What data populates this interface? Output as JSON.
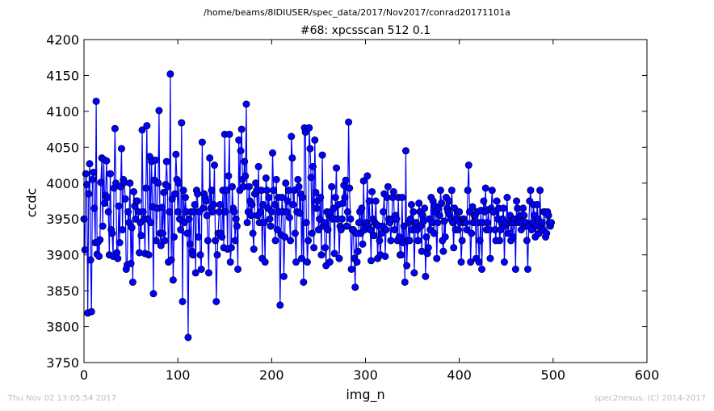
{
  "chart_data": {
    "type": "line",
    "suptitle": "/home/beams/8IDIUSER/spec_data/2017/Nov2017/conrad20171101a",
    "title": "#68: xpcsscan 512 0.1",
    "xlabel": "img_n",
    "ylabel": "ccdc",
    "xlim": [
      0,
      600
    ],
    "ylim": [
      3750,
      4200
    ],
    "xticks": [
      0,
      100,
      200,
      300,
      400,
      500,
      600
    ],
    "yticks": [
      3750,
      3800,
      3850,
      3900,
      3950,
      4000,
      4050,
      4100,
      4150,
      4200
    ],
    "grid": false,
    "series": [
      {
        "color": "#0000ff",
        "marker": "circle",
        "x_start": 0,
        "x_step": 1,
        "values": [
          3950,
          3907,
          4013,
          3998,
          3819,
          3985,
          4027,
          3893,
          3821,
          4005,
          4015,
          3965,
          3917,
          4114,
          3901,
          3918,
          3898,
          3921,
          4001,
          4035,
          3940,
          4033,
          3972,
          3983,
          4031,
          3980,
          3960,
          3900,
          4013,
          3935,
          3930,
          3898,
          3993,
          4076,
          4000,
          3903,
          3895,
          3968,
          3917,
          3995,
          4048,
          3935,
          4005,
          4001,
          3978,
          3880,
          3886,
          3960,
          3945,
          4000,
          3888,
          3938,
          3862,
          3988,
          3968,
          3950,
          3975,
          3975,
          3960,
          3903,
          3945,
          3927,
          4074,
          3960,
          3950,
          3902,
          3993,
          4080,
          3950,
          3900,
          4037,
          3945,
          4030,
          3967,
          3846,
          4004,
          4032,
          3920,
          3965,
          4000,
          4101,
          3930,
          3913,
          3966,
          3930,
          3987,
          3920,
          3998,
          4030,
          3995,
          3890,
          3960,
          4152,
          3893,
          3978,
          3865,
          3925,
          3985,
          4040,
          4005,
          3960,
          4000,
          3950,
          3935,
          4084,
          3835,
          3990,
          3945,
          3980,
          3960,
          3930,
          3785,
          3950,
          3915,
          3960,
          3905,
          3900,
          3960,
          3970,
          3875,
          3990,
          3985,
          3925,
          3960,
          3900,
          3880,
          4057,
          3965,
          3985,
          3980,
          3975,
          3955,
          3920,
          3875,
          4035,
          3965,
          3990,
          3960,
          3970,
          4025,
          3920,
          3835,
          3900,
          3930,
          3960,
          3970,
          3930,
          3925,
          3990,
          3910,
          4068,
          3960,
          3990,
          3908,
          4010,
          4068,
          3890,
          3910,
          3995,
          3965,
          3960,
          3920,
          3950,
          3940,
          3880,
          4060,
          3990,
          4045,
          4075,
          4005,
          3995,
          4030,
          4010,
          4110,
          3945,
          3960,
          3995,
          3975,
          3955,
          3970,
          3930,
          3908,
          3985,
          4000,
          3990,
          3955,
          4023,
          3945,
          3960,
          3990,
          3895,
          3970,
          3945,
          3890,
          4007,
          3990,
          3965,
          3980,
          3950,
          3940,
          3960,
          4042,
          3990,
          3970,
          3920,
          4005,
          3935,
          3980,
          3960,
          3830,
          3928,
          3980,
          3960,
          3870,
          3925,
          4000,
          3960,
          3975,
          3990,
          3952,
          3920,
          4065,
          4035,
          3970,
          3990,
          3930,
          3890,
          3960,
          4005,
          3995,
          3958,
          3985,
          3895,
          3980,
          3862,
          4077,
          4071,
          3945,
          3890,
          3920,
          4077,
          4048,
          4008,
          3930,
          4023,
          3910,
          4060,
          3987,
          3965,
          3975,
          3935,
          3950,
          3980,
          3900,
          4039,
          3940,
          3945,
          3910,
          3885,
          3960,
          3935,
          3955,
          3890,
          3960,
          3995,
          3950,
          3965,
          3902,
          3980,
          4021,
          3950,
          3970,
          3895,
          3940,
          3935,
          3950,
          3972,
          3997,
          3980,
          4004,
          3940,
          3960,
          4085,
          3993,
          3950,
          3880,
          3935,
          3935,
          3895,
          3855,
          3930,
          3890,
          3905,
          3945,
          3960,
          3930,
          3965,
          3915,
          4003,
          3935,
          3940,
          3945,
          4010,
          3940,
          3975,
          3935,
          3892,
          3988,
          3950,
          3927,
          3945,
          3975,
          3942,
          3895,
          3940,
          3920,
          3900,
          3930,
          3940,
          3960,
          3985,
          3898,
          3935,
          3980,
          3995,
          3950,
          3945,
          3920,
          3950,
          3980,
          3988,
          3935,
          3955,
          3950,
          3920,
          3980,
          3925,
          3900,
          3900,
          3980,
          3917,
          3940,
          3862,
          4045,
          3885,
          3920,
          3945,
          3920,
          3950,
          3970,
          3935,
          3960,
          3875,
          3940,
          3945,
          3935,
          3920,
          3972,
          3960,
          3940,
          3905,
          3955,
          3947,
          3965,
          3870,
          3925,
          3902,
          3910,
          3950,
          3935,
          3980,
          3945,
          3975,
          3930,
          3968,
          3960,
          3895,
          3945,
          3965,
          3955,
          3990,
          3972,
          3920,
          3905,
          3947,
          3925,
          3980,
          3965,
          3960,
          3975,
          3955,
          3950,
          3990,
          3945,
          3910,
          3965,
          3935,
          3950,
          3960,
          3935,
          3960,
          3945,
          3890,
          3920,
          3950,
          3950,
          3945,
          3945,
          3935,
          3990,
          4025,
          3960,
          3890,
          3930,
          3967,
          3945,
          3955,
          3955,
          3895,
          3960,
          3945,
          3890,
          3920,
          3962,
          3880,
          3945,
          3975,
          3960,
          3993,
          3935,
          3945,
          3963,
          3935,
          3895,
          3965,
          3990,
          3960,
          3960,
          3935,
          3920,
          3975,
          3950,
          3965,
          3920,
          3935,
          3945,
          3950,
          3965,
          3890,
          3940,
          3945,
          3980,
          3930,
          3945,
          3955,
          3920,
          3945,
          3925,
          3945,
          3950,
          3880,
          3975,
          3965,
          3945,
          3950,
          3955,
          3935,
          3945,
          3965,
          3955,
          3940,
          3945,
          3920,
          3880,
          3940,
          3975,
          3990,
          3935,
          3945,
          3970,
          3955,
          3925,
          3940,
          3970,
          3950,
          3930,
          3990,
          3940,
          3945,
          3935,
          3960,
          3960,
          3925,
          3930,
          3960,
          3955,
          3945,
          3940,
          3945
        ]
      }
    ]
  },
  "footer": {
    "timestamp": "Thu Nov 02 13:05:54 2017",
    "credit": "spec2nexus, (C) 2014-2017"
  }
}
